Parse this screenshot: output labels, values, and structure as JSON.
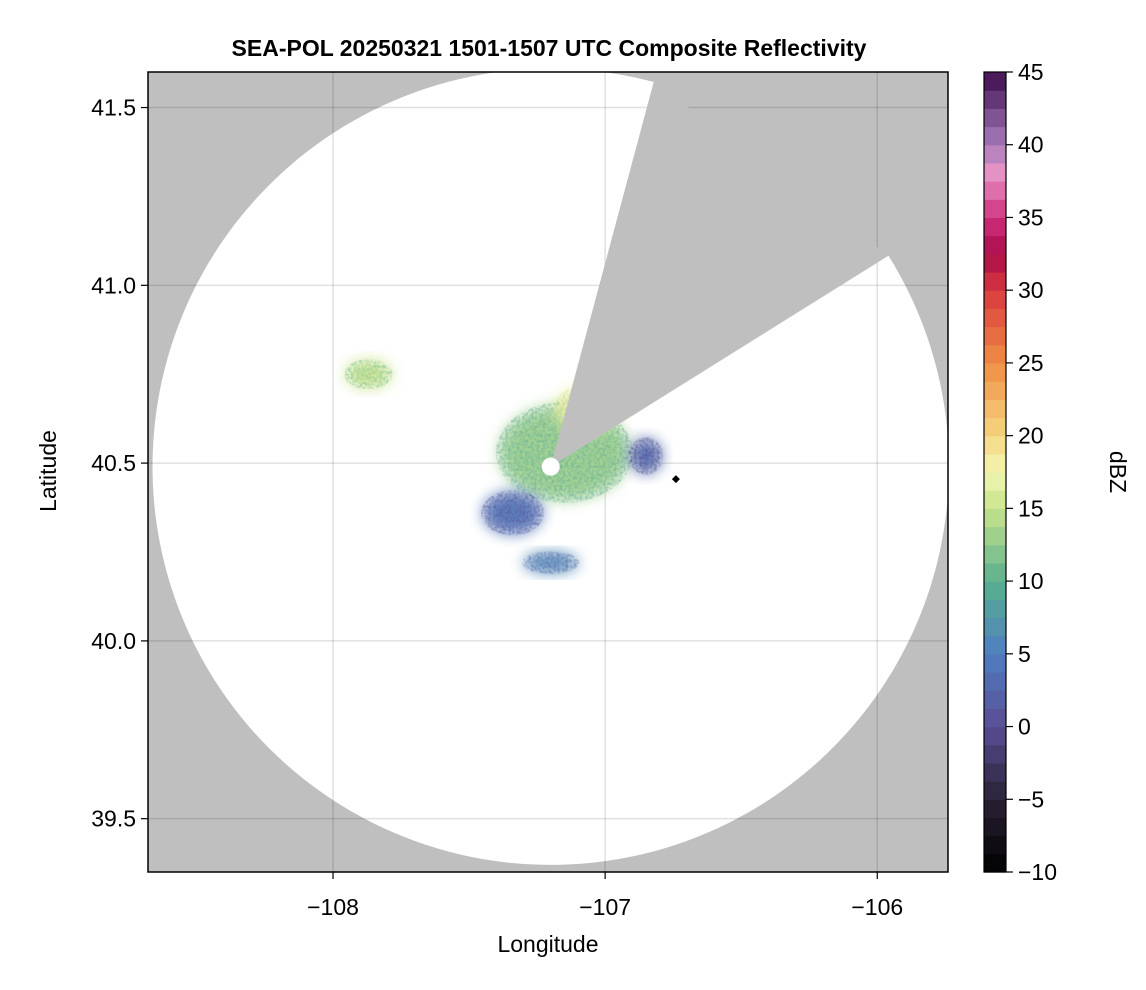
{
  "chart_data": {
    "type": "heatmap",
    "title": "SEA-POL 20250321 1501-1507 UTC Composite Reflectivity",
    "xlabel": "Longitude",
    "ylabel": "Latitude",
    "xlim": [
      -108.68,
      -105.74
    ],
    "ylim": [
      39.35,
      41.6
    ],
    "xticks": [
      {
        "value": -108,
        "label": "−108"
      },
      {
        "value": -107,
        "label": "−107"
      },
      {
        "value": -106,
        "label": "−106"
      }
    ],
    "yticks": [
      {
        "value": 39.5,
        "label": "39.5"
      },
      {
        "value": 40.0,
        "label": "40.0"
      },
      {
        "value": 40.5,
        "label": "40.5"
      },
      {
        "value": 41.0,
        "label": "41.0"
      },
      {
        "value": 41.5,
        "label": "41.5"
      }
    ],
    "grid": true,
    "background_color": "#bfbfbf",
    "coverage_color": "#ffffff",
    "radar": {
      "center": [
        -107.2,
        40.49
      ],
      "max_range_lat_deg": 1.12,
      "blanked_sectors_azimuth_deg": [
        [
          15,
          58
        ]
      ]
    },
    "reflectivity_field": [
      {
        "region": "main-echo",
        "center": [
          -107.15,
          40.53
        ],
        "span": [
          0.48,
          0.27
        ],
        "dbz": 13
      },
      {
        "region": "north-core",
        "center": [
          -107.07,
          40.65
        ],
        "span": [
          0.23,
          0.13
        ],
        "dbz": 18
      },
      {
        "region": "southwest-weak-echo",
        "center": [
          -107.34,
          40.36
        ],
        "span": [
          0.22,
          0.12
        ],
        "dbz": 4
      },
      {
        "region": "isolated-northwest-cell",
        "center": [
          -107.87,
          40.75
        ],
        "span": [
          0.17,
          0.08
        ],
        "dbz": 15
      },
      {
        "region": "south-scattered",
        "center": [
          -107.2,
          40.22
        ],
        "span": [
          0.2,
          0.06
        ],
        "dbz": 6
      },
      {
        "region": "east-scattered",
        "center": [
          -106.85,
          40.52
        ],
        "span": [
          0.12,
          0.1
        ],
        "dbz": 3
      }
    ],
    "markers": [
      {
        "name": "marker",
        "lon": -106.74,
        "lat": 40.455,
        "shape": "diamond",
        "color": "#000000"
      }
    ],
    "colorbar": {
      "label": "dBZ",
      "min": -10,
      "max": 45,
      "ticks": [
        {
          "value": -10,
          "label": "−10"
        },
        {
          "value": -5,
          "label": "−5"
        },
        {
          "value": 0,
          "label": "0"
        },
        {
          "value": 5,
          "label": "5"
        },
        {
          "value": 10,
          "label": "10"
        },
        {
          "value": 15,
          "label": "15"
        },
        {
          "value": 20,
          "label": "20"
        },
        {
          "value": 25,
          "label": "25"
        },
        {
          "value": 30,
          "label": "30"
        },
        {
          "value": 35,
          "label": "35"
        },
        {
          "value": 40,
          "label": "40"
        },
        {
          "value": 45,
          "label": "45"
        }
      ],
      "colormap_stops": [
        {
          "value": -10,
          "color": "#000000"
        },
        {
          "value": -5,
          "color": "#2a2135"
        },
        {
          "value": 0,
          "color": "#5a4e95"
        },
        {
          "value": 5,
          "color": "#4e7ec0"
        },
        {
          "value": 10,
          "color": "#5bb08e"
        },
        {
          "value": 15,
          "color": "#c8e38a"
        },
        {
          "value": 17.5,
          "color": "#f3f6b3"
        },
        {
          "value": 20,
          "color": "#f5d680"
        },
        {
          "value": 25,
          "color": "#ef8e45"
        },
        {
          "value": 30,
          "color": "#d9393e"
        },
        {
          "value": 32.5,
          "color": "#a80a47"
        },
        {
          "value": 35,
          "color": "#d0307e"
        },
        {
          "value": 38,
          "color": "#e694c4"
        },
        {
          "value": 40,
          "color": "#a87dbd"
        },
        {
          "value": 45,
          "color": "#3e0d4d"
        }
      ]
    }
  }
}
